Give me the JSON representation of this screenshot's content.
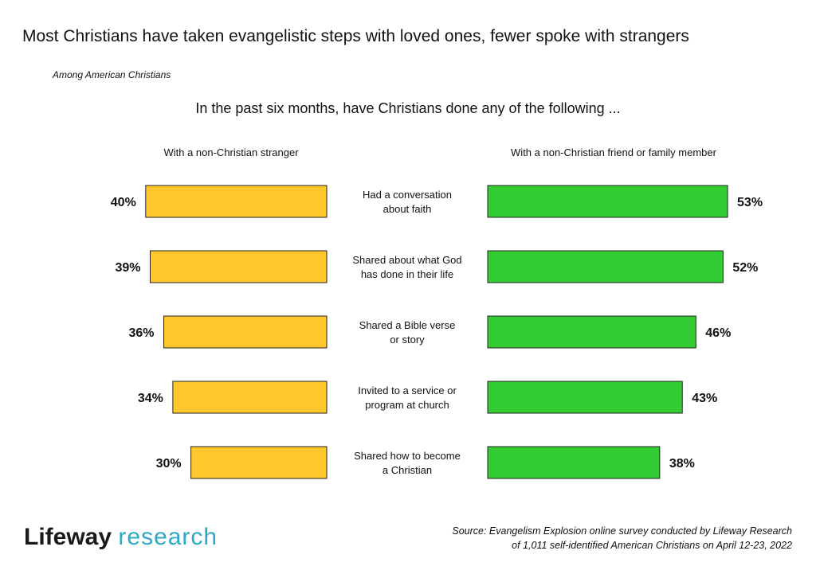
{
  "title": "Most Christians have taken evangelistic steps with loved ones, fewer spoke with strangers",
  "subtitle": "Among American Christians",
  "question": "In the past six months, have Christians done any of the following ...",
  "logo": {
    "part1": "Lifeway",
    "part2": "research"
  },
  "source": {
    "line1": "Source: Evangelism Explosion online survey conducted by Lifeway Research",
    "line2": "of 1,011 self-identified American Christians on April 12-23, 2022"
  },
  "colors": {
    "stranger": "#FFC72C",
    "friend": "#33CC33",
    "outline": "#222222"
  },
  "chart_data": {
    "type": "bar",
    "orientation": "horizontal-butterfly",
    "categories": [
      [
        "Had a conversation",
        "about faith"
      ],
      [
        "Shared about what God",
        "has done in their life"
      ],
      [
        "Shared a Bible verse",
        "or story"
      ],
      [
        "Invited to a service or",
        "program at church"
      ],
      [
        "Shared how to become",
        "a Christian"
      ]
    ],
    "series": [
      {
        "name": "With a non-Christian stranger",
        "values": [
          40,
          39,
          36,
          34,
          30
        ],
        "labels": [
          "40%",
          "39%",
          "36%",
          "34%",
          "30%"
        ],
        "color": "#FFC72C",
        "direction": "left"
      },
      {
        "name": "With a non-Christian friend or family member",
        "values": [
          53,
          52,
          46,
          43,
          38
        ],
        "labels": [
          "53%",
          "52%",
          "46%",
          "43%",
          "38%"
        ],
        "color": "#33CC33",
        "direction": "right"
      }
    ],
    "grid": false
  }
}
